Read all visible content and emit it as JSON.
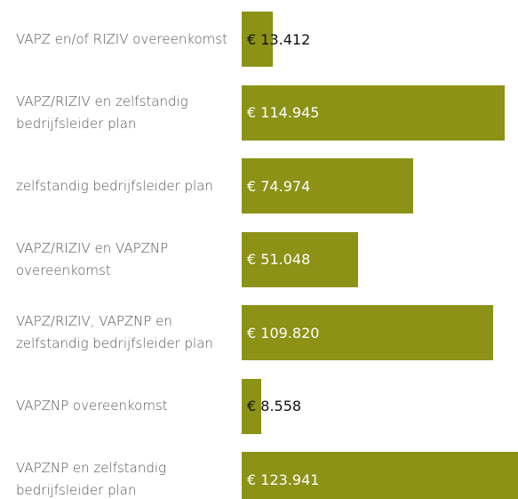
{
  "chart_data": {
    "type": "bar",
    "orientation": "horizontal",
    "categories": [
      "VAPZ en/of RIZIV overeenkomst",
      "VAPZ/RIZIV en zelfstandig bedrijfsleider plan",
      "zelfstandig bedrijfsleider plan",
      "VAPZ/RIZIV en VAPZNP overeenkomst",
      "VAPZ/RIZIV, VAPZNP en zelfstandig bedrijfsleider plan",
      "VAPZNP overeenkomst",
      "VAPZNP en zelfstandig bedrijfsleider plan"
    ],
    "values": [
      13412,
      114945,
      74974,
      51048,
      109820,
      8558,
      123941
    ],
    "value_labels": [
      "€ 13.412",
      "€ 114.945",
      "€ 74.974",
      "€ 51.048",
      "€ 109.820",
      "€ 8.558",
      "€ 123.941"
    ],
    "color": "#8b9216"
  }
}
